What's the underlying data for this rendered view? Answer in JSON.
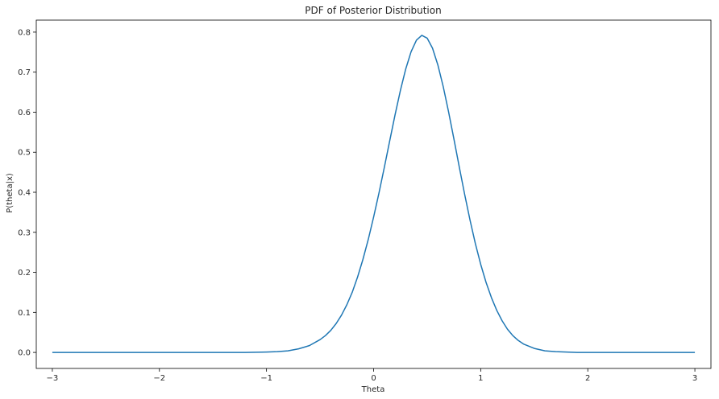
{
  "chart_data": {
    "type": "line",
    "title": "PDF of Posterior Distribution",
    "xlabel": "Theta",
    "ylabel": "P(theta|x)",
    "xlim": [
      -3.15,
      3.15
    ],
    "ylim": [
      -0.04,
      0.83
    ],
    "xticks": [
      -3,
      -2,
      -1,
      0,
      1,
      2,
      3
    ],
    "xtick_labels": [
      "−3",
      "−2",
      "−1",
      "0",
      "1",
      "2",
      "3"
    ],
    "yticks": [
      0.0,
      0.1,
      0.2,
      0.3,
      0.4,
      0.5,
      0.6,
      0.7,
      0.8
    ],
    "ytick_labels": [
      "0.0",
      "0.1",
      "0.2",
      "0.3",
      "0.4",
      "0.5",
      "0.6",
      "0.7",
      "0.8"
    ],
    "grid": false,
    "series": [
      {
        "color": "#1f77b4",
        "x": [
          -3.0,
          -2.5,
          -2.0,
          -1.5,
          -1.2,
          -1.0,
          -0.9,
          -0.8,
          -0.7,
          -0.6,
          -0.5,
          -0.45,
          -0.4,
          -0.35,
          -0.3,
          -0.25,
          -0.2,
          -0.15,
          -0.1,
          -0.05,
          0.0,
          0.05,
          0.1,
          0.15,
          0.2,
          0.25,
          0.3,
          0.35,
          0.4,
          0.45,
          0.5,
          0.55,
          0.6,
          0.65,
          0.7,
          0.75,
          0.8,
          0.85,
          0.9,
          0.95,
          1.0,
          1.05,
          1.1,
          1.15,
          1.2,
          1.25,
          1.3,
          1.35,
          1.4,
          1.5,
          1.6,
          1.7,
          1.8,
          1.9,
          2.0,
          2.2,
          2.5,
          3.0
        ],
        "y": [
          0.0,
          0.0,
          0.0,
          0.0,
          0.0,
          0.001,
          0.002,
          0.004,
          0.009,
          0.017,
          0.032,
          0.042,
          0.055,
          0.072,
          0.093,
          0.119,
          0.15,
          0.188,
          0.232,
          0.282,
          0.338,
          0.398,
          0.462,
          0.528,
          0.593,
          0.654,
          0.708,
          0.751,
          0.78,
          0.792,
          0.785,
          0.76,
          0.718,
          0.664,
          0.601,
          0.533,
          0.463,
          0.395,
          0.331,
          0.272,
          0.22,
          0.175,
          0.137,
          0.105,
          0.079,
          0.058,
          0.042,
          0.03,
          0.021,
          0.01,
          0.004,
          0.002,
          0.001,
          0.0,
          0.0,
          0.0,
          0.0,
          0.0
        ]
      }
    ]
  }
}
